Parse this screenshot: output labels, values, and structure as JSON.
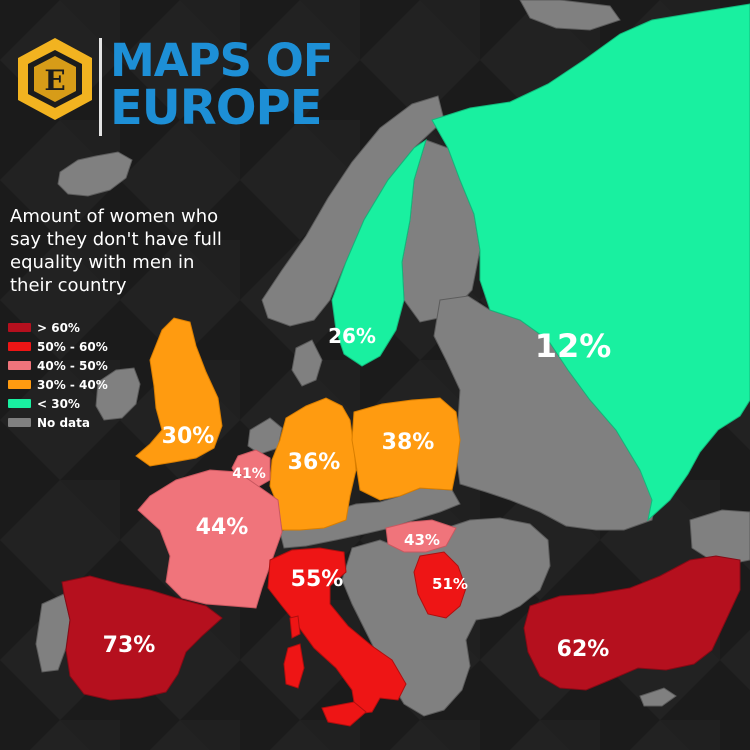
{
  "brand": {
    "logo_letter": "E",
    "title_line1": "MAPS OF",
    "title_line2": "EUROPE",
    "colors": {
      "gold": "#f2b320",
      "blue": "#1d8fd6"
    }
  },
  "heading": "Amount of women who say they don't have full equality with men in their country",
  "legend": [
    {
      "label": "> 60%",
      "color": "#b5101e"
    },
    {
      "label": "50% - 60%",
      "color": "#ee1515"
    },
    {
      "label": "40% - 50%",
      "color": "#f0747b"
    },
    {
      "label": "30% - 40%",
      "color": "#ff9b10"
    },
    {
      "label": "< 30%",
      "color": "#19f0a0"
    },
    {
      "label": "No data",
      "color": "#808080"
    }
  ],
  "map_data": {
    "countries": [
      {
        "id": "russia-finland-sweden",
        "value": "12%",
        "category": "< 30%"
      },
      {
        "id": "sweden",
        "value": "26%",
        "category": "< 30%"
      },
      {
        "id": "united-kingdom",
        "value": "30%",
        "category": "30% - 40%"
      },
      {
        "id": "germany",
        "value": "36%",
        "category": "30% - 40%"
      },
      {
        "id": "poland",
        "value": "38%",
        "category": "30% - 40%"
      },
      {
        "id": "belgium",
        "value": "41%",
        "category": "40% - 50%"
      },
      {
        "id": "france",
        "value": "44%",
        "category": "40% - 50%"
      },
      {
        "id": "hungary",
        "value": "43%",
        "category": "40% - 50%"
      },
      {
        "id": "serbia",
        "value": "51%",
        "category": "50% - 60%"
      },
      {
        "id": "italy",
        "value": "55%",
        "category": "50% - 60%"
      },
      {
        "id": "turkey",
        "value": "62%",
        "category": "> 60%"
      },
      {
        "id": "spain",
        "value": "73%",
        "category": "> 60%"
      }
    ]
  },
  "colors": {
    "background": "#1b1b1b",
    "no_data": "#808080",
    "water": "#1b1b1b"
  }
}
